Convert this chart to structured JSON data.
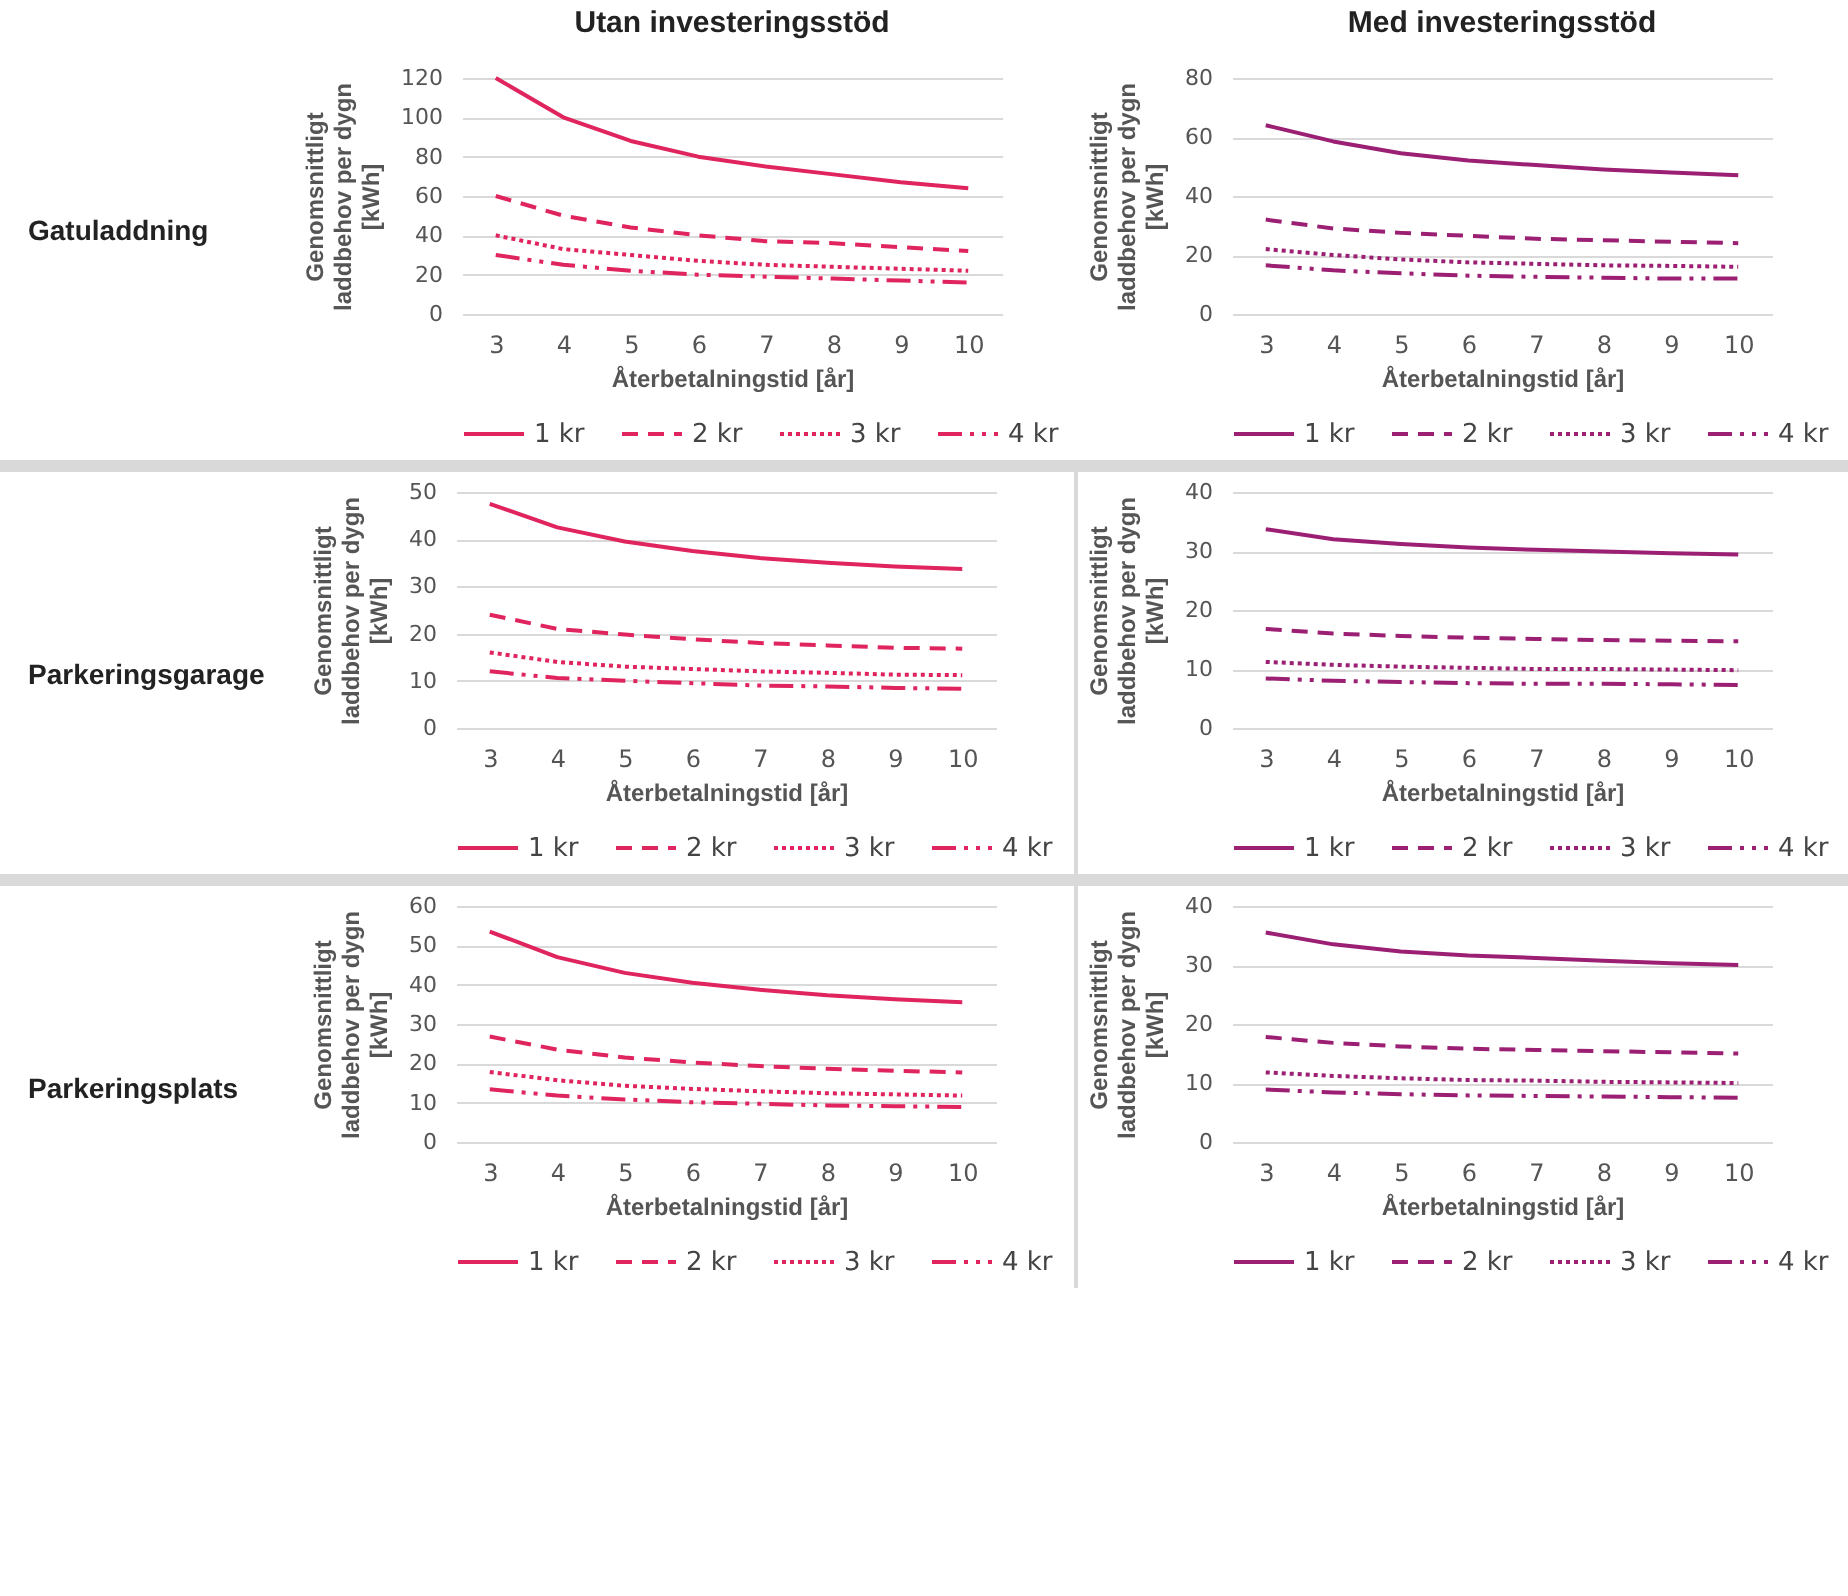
{
  "chart_data": [
    {
      "type": "line",
      "title": "Utan investeringsstöd",
      "annotations": [
        "Gatuladdning"
      ],
      "xlabel": "Återbetalningstid [år]",
      "ylabel": "Genomsnittligt laddbehov per dygn [kWh]",
      "categories": [
        "3",
        "4",
        "5",
        "6",
        "7",
        "8",
        "9",
        "10"
      ],
      "ylim": [
        0,
        120
      ],
      "yticks": [
        0,
        20,
        40,
        60,
        80,
        100,
        120
      ],
      "grid": "y",
      "legend": "bottom",
      "series": [
        {
          "name": "1 kr",
          "color": "#e0245e",
          "line_style": "solid",
          "values": [
            120,
            100,
            88,
            80,
            75,
            71,
            67,
            64
          ]
        },
        {
          "name": "2 kr",
          "color": "#e0245e",
          "line_style": "dashed",
          "values": [
            60,
            50,
            44,
            40,
            37,
            36,
            34,
            32
          ]
        },
        {
          "name": "3 kr",
          "color": "#e0245e",
          "line_style": "dotted",
          "values": [
            40,
            33,
            30,
            27,
            25,
            24,
            23,
            22
          ]
        },
        {
          "name": "4 kr",
          "color": "#e0245e",
          "line_style": "dashdot",
          "values": [
            30,
            25,
            22,
            20,
            19,
            18,
            17,
            16
          ]
        }
      ]
    },
    {
      "type": "line",
      "title": "Med investeringsstöd",
      "xlabel": "Återbetalningstid [år]",
      "ylabel": "Genomsnittligt laddbehov per dygn [kWh]",
      "categories": [
        "3",
        "4",
        "5",
        "6",
        "7",
        "8",
        "9",
        "10"
      ],
      "ylim": [
        0,
        80
      ],
      "yticks": [
        0,
        20,
        40,
        60,
        80
      ],
      "grid": "y",
      "legend": "bottom",
      "series": [
        {
          "name": "1 kr",
          "color": "#9b1f73",
          "line_style": "solid",
          "values": [
            64,
            58.5,
            54.5,
            52,
            50.5,
            49,
            48,
            47
          ]
        },
        {
          "name": "2 kr",
          "color": "#9b1f73",
          "line_style": "dashed",
          "values": [
            32,
            29,
            27.5,
            26.5,
            25.5,
            25,
            24.5,
            24
          ]
        },
        {
          "name": "3 kr",
          "color": "#9b1f73",
          "line_style": "dotted",
          "values": [
            22,
            20,
            18.5,
            17.5,
            17,
            16.5,
            16.3,
            16
          ]
        },
        {
          "name": "4 kr",
          "color": "#9b1f73",
          "line_style": "dashdot",
          "values": [
            16.5,
            14.8,
            13.8,
            13,
            12.6,
            12.3,
            12,
            12
          ]
        }
      ]
    },
    {
      "type": "line",
      "annotations": [
        "Parkeringsgarage"
      ],
      "xlabel": "Återbetalningstid [år]",
      "ylabel": "Genomsnittligt laddbehov per dygn [kWh]",
      "categories": [
        "3",
        "4",
        "5",
        "6",
        "7",
        "8",
        "9",
        "10"
      ],
      "ylim": [
        0,
        50
      ],
      "yticks": [
        0,
        10,
        20,
        30,
        40,
        50
      ],
      "grid": "y",
      "legend": "bottom",
      "series": [
        {
          "name": "1 kr",
          "color": "#e0245e",
          "line_style": "solid",
          "values": [
            47.5,
            42.5,
            39.5,
            37.5,
            36,
            35,
            34.2,
            33.7
          ]
        },
        {
          "name": "2 kr",
          "color": "#e0245e",
          "line_style": "dashed",
          "values": [
            24,
            21,
            19.8,
            18.8,
            18,
            17.5,
            17,
            16.8
          ]
        },
        {
          "name": "3 kr",
          "color": "#e0245e",
          "line_style": "dotted",
          "values": [
            16,
            14,
            13,
            12.5,
            12,
            11.7,
            11.3,
            11.2
          ]
        },
        {
          "name": "4 kr",
          "color": "#e0245e",
          "line_style": "dashdot",
          "values": [
            12,
            10.6,
            10,
            9.5,
            9,
            8.8,
            8.5,
            8.3
          ]
        }
      ]
    },
    {
      "type": "line",
      "xlabel": "Återbetalningstid [år]",
      "ylabel": "Genomsnittligt laddbehov per dygn [kWh]",
      "categories": [
        "3",
        "4",
        "5",
        "6",
        "7",
        "8",
        "9",
        "10"
      ],
      "ylim": [
        0,
        40
      ],
      "yticks": [
        0,
        10,
        20,
        30,
        40
      ],
      "grid": "y",
      "legend": "bottom",
      "series": [
        {
          "name": "1 kr",
          "color": "#9b1f73",
          "line_style": "solid",
          "values": [
            33.7,
            32,
            31.2,
            30.6,
            30.2,
            29.9,
            29.6,
            29.4
          ]
        },
        {
          "name": "2 kr",
          "color": "#9b1f73",
          "line_style": "dashed",
          "values": [
            16.8,
            16,
            15.6,
            15.3,
            15.1,
            14.9,
            14.8,
            14.7
          ]
        },
        {
          "name": "3 kr",
          "color": "#9b1f73",
          "line_style": "dotted",
          "values": [
            11.2,
            10.7,
            10.4,
            10.2,
            10,
            10,
            9.9,
            9.8
          ]
        },
        {
          "name": "4 kr",
          "color": "#9b1f73",
          "line_style": "dashdot",
          "values": [
            8.4,
            8,
            7.8,
            7.6,
            7.5,
            7.5,
            7.4,
            7.3
          ]
        }
      ]
    },
    {
      "type": "line",
      "annotations": [
        "Parkeringsplats"
      ],
      "xlabel": "Återbetalningstid [år]",
      "ylabel": "Genomsnittligt laddbehov per dygn [kWh]",
      "categories": [
        "3",
        "4",
        "5",
        "6",
        "7",
        "8",
        "9",
        "10"
      ],
      "ylim": [
        0,
        60
      ],
      "yticks": [
        0,
        10,
        20,
        30,
        40,
        50,
        60
      ],
      "grid": "y",
      "legend": "bottom",
      "series": [
        {
          "name": "1 kr",
          "color": "#e0245e",
          "line_style": "solid",
          "values": [
            53.5,
            47,
            43,
            40.5,
            38.7,
            37.3,
            36.3,
            35.5
          ]
        },
        {
          "name": "2 kr",
          "color": "#e0245e",
          "line_style": "dashed",
          "values": [
            26.8,
            23.5,
            21.5,
            20.2,
            19.3,
            18.6,
            18.1,
            17.7
          ]
        },
        {
          "name": "3 kr",
          "color": "#e0245e",
          "line_style": "dotted",
          "values": [
            17.8,
            15.7,
            14.3,
            13.5,
            12.9,
            12.4,
            12.1,
            11.8
          ]
        },
        {
          "name": "4 kr",
          "color": "#e0245e",
          "line_style": "dashdot",
          "values": [
            13.4,
            11.8,
            10.8,
            10.1,
            9.7,
            9.3,
            9.1,
            8.9
          ]
        }
      ]
    },
    {
      "type": "line",
      "xlabel": "Återbetalningstid [år]",
      "ylabel": "Genomsnittligt laddbehov per dygn [kWh]",
      "categories": [
        "3",
        "4",
        "5",
        "6",
        "7",
        "8",
        "9",
        "10"
      ],
      "ylim": [
        0,
        40
      ],
      "yticks": [
        0,
        10,
        20,
        30,
        40
      ],
      "grid": "y",
      "legend": "bottom",
      "series": [
        {
          "name": "1 kr",
          "color": "#9b1f73",
          "line_style": "solid",
          "values": [
            35.5,
            33.5,
            32.3,
            31.6,
            31.2,
            30.7,
            30.3,
            30
          ]
        },
        {
          "name": "2 kr",
          "color": "#9b1f73",
          "line_style": "dashed",
          "values": [
            17.8,
            16.8,
            16.2,
            15.8,
            15.6,
            15.4,
            15.2,
            15
          ]
        },
        {
          "name": "3 kr",
          "color": "#9b1f73",
          "line_style": "dotted",
          "values": [
            11.8,
            11.2,
            10.8,
            10.5,
            10.4,
            10.2,
            10.1,
            10
          ]
        },
        {
          "name": "4 kr",
          "color": "#9b1f73",
          "line_style": "dashdot",
          "values": [
            8.9,
            8.4,
            8.1,
            7.9,
            7.8,
            7.7,
            7.6,
            7.5
          ]
        }
      ]
    }
  ]
}
